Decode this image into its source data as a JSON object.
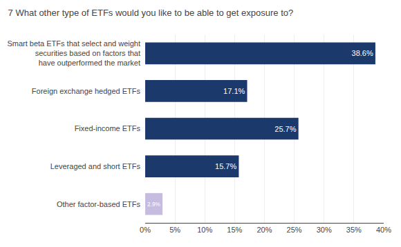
{
  "chart_data": {
    "type": "bar",
    "orientation": "horizontal",
    "title": "7 What other type of ETFs would you like to be able to get exposure to?",
    "categories": [
      "Smart beta ETFs that select and weight\nsecurities based on factors that\nhave outperformed the market",
      "Foreign exchange hedged ETFs",
      "Fixed-income ETFs",
      "Leveraged and short ETFs",
      "Other factor-based ETFs"
    ],
    "values": [
      38.6,
      17.1,
      25.7,
      15.7,
      2.9
    ],
    "value_labels": [
      "38.6%",
      "17.1%",
      "25.7%",
      "15.7%",
      "2.9%"
    ],
    "data_labels": true,
    "colors": [
      "#1b3a6b",
      "#1b3a6b",
      "#1b3a6b",
      "#1b3a6b",
      "#c5bce0"
    ],
    "xlim": [
      0,
      40
    ],
    "xticks": [
      {
        "value": 0,
        "label": "0%"
      },
      {
        "value": 5,
        "label": "5%"
      },
      {
        "value": 10,
        "label": "10%"
      },
      {
        "value": 15,
        "label": "15%"
      },
      {
        "value": 20,
        "label": "20%"
      },
      {
        "value": 25,
        "label": "25%"
      },
      {
        "value": 30,
        "label": "30%"
      },
      {
        "value": 35,
        "label": "35%"
      },
      {
        "value": 40,
        "label": "40%"
      }
    ],
    "grid": true
  }
}
